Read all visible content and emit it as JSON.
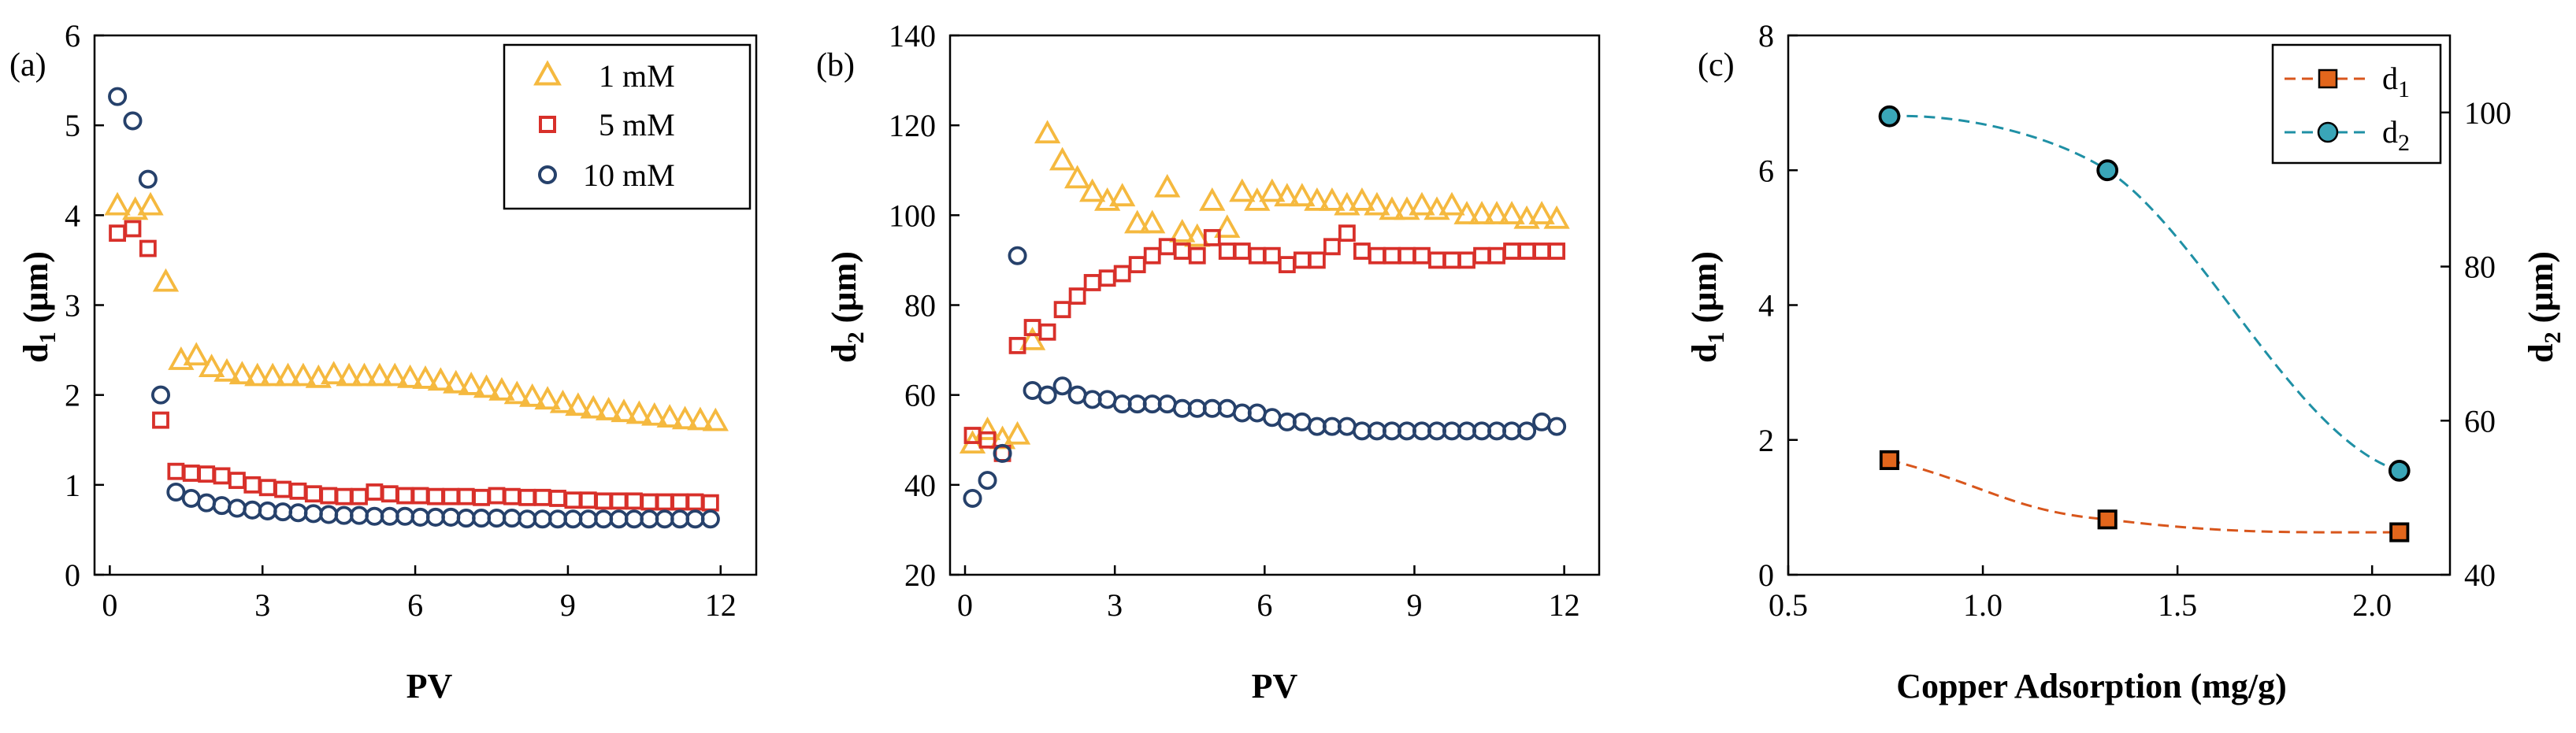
{
  "colors": {
    "yellow": "#F5B93F",
    "red": "#D8302A",
    "navy": "#26416B",
    "orange": "#D8561C",
    "teal": "#1F90A5",
    "teal_fill": "#3AA6B8",
    "orange_fill": "#E2661C"
  },
  "chart_data": [
    {
      "panel": "(a)",
      "type": "scatter",
      "xlabel": "PV",
      "ylabel": "d1 (µm)",
      "ylabel_main": "d",
      "ylabel_sub": "1",
      "ylabel_unit": " (µm)",
      "xlim": [
        -0.3,
        12.7
      ],
      "ylim": [
        0,
        6
      ],
      "xticks": [
        0,
        3,
        6,
        9,
        12
      ],
      "yticks": [
        0,
        1,
        2,
        3,
        4,
        5,
        6
      ],
      "legend": {
        "position": "top-right"
      },
      "series": [
        {
          "name": "1 mM",
          "marker": "triangle",
          "color": "yellow",
          "x": [
            0.15,
            0.5,
            0.8,
            1.1,
            1.4,
            1.7,
            2.0,
            2.3,
            2.6,
            2.9,
            3.2,
            3.5,
            3.8,
            4.1,
            4.4,
            4.7,
            5.0,
            5.3,
            5.6,
            5.9,
            6.2,
            6.5,
            6.8,
            7.1,
            7.4,
            7.7,
            8.0,
            8.3,
            8.6,
            8.9,
            9.2,
            9.5,
            9.8,
            10.1,
            10.4,
            10.7,
            11.0,
            11.3,
            11.6,
            11.9
          ],
          "y": [
            4.1,
            4.05,
            4.1,
            3.25,
            2.38,
            2.43,
            2.3,
            2.25,
            2.22,
            2.2,
            2.2,
            2.2,
            2.2,
            2.18,
            2.22,
            2.2,
            2.2,
            2.2,
            2.2,
            2.18,
            2.17,
            2.15,
            2.12,
            2.1,
            2.07,
            2.04,
            2.0,
            1.97,
            1.94,
            1.9,
            1.87,
            1.84,
            1.82,
            1.8,
            1.78,
            1.76,
            1.74,
            1.72,
            1.71,
            1.7
          ]
        },
        {
          "name": "5 mM",
          "marker": "square",
          "color": "red",
          "x": [
            0.15,
            0.45,
            0.75,
            1.0,
            1.3,
            1.6,
            1.9,
            2.2,
            2.5,
            2.8,
            3.1,
            3.4,
            3.7,
            4.0,
            4.3,
            4.6,
            4.9,
            5.2,
            5.5,
            5.8,
            6.1,
            6.4,
            6.7,
            7.0,
            7.3,
            7.6,
            7.9,
            8.2,
            8.5,
            8.8,
            9.1,
            9.4,
            9.7,
            10.0,
            10.3,
            10.6,
            10.9,
            11.2,
            11.5,
            11.8
          ],
          "y": [
            3.8,
            3.85,
            3.63,
            1.72,
            1.15,
            1.13,
            1.12,
            1.1,
            1.05,
            1.0,
            0.97,
            0.95,
            0.93,
            0.9,
            0.88,
            0.87,
            0.87,
            0.92,
            0.9,
            0.88,
            0.88,
            0.87,
            0.87,
            0.87,
            0.86,
            0.88,
            0.87,
            0.86,
            0.86,
            0.85,
            0.83,
            0.83,
            0.82,
            0.82,
            0.82,
            0.81,
            0.81,
            0.81,
            0.81,
            0.8
          ]
        },
        {
          "name": "10 mM",
          "marker": "circle",
          "color": "navy",
          "x": [
            0.15,
            0.45,
            0.75,
            1.0,
            1.3,
            1.6,
            1.9,
            2.2,
            2.5,
            2.8,
            3.1,
            3.4,
            3.7,
            4.0,
            4.3,
            4.6,
            4.9,
            5.2,
            5.5,
            5.8,
            6.1,
            6.4,
            6.7,
            7.0,
            7.3,
            7.6,
            7.9,
            8.2,
            8.5,
            8.8,
            9.1,
            9.4,
            9.7,
            10.0,
            10.3,
            10.6,
            10.9,
            11.2,
            11.5,
            11.8
          ],
          "y": [
            5.32,
            5.05,
            4.4,
            2.0,
            0.92,
            0.85,
            0.8,
            0.77,
            0.74,
            0.72,
            0.71,
            0.7,
            0.69,
            0.68,
            0.67,
            0.66,
            0.66,
            0.65,
            0.65,
            0.65,
            0.64,
            0.64,
            0.64,
            0.63,
            0.63,
            0.63,
            0.63,
            0.62,
            0.62,
            0.62,
            0.62,
            0.62,
            0.62,
            0.62,
            0.62,
            0.62,
            0.62,
            0.62,
            0.62,
            0.62
          ]
        }
      ]
    },
    {
      "panel": "(b)",
      "type": "scatter",
      "xlabel": "PV",
      "ylabel": "d2 (µm)",
      "ylabel_main": "d",
      "ylabel_sub": "2",
      "ylabel_unit": " (µm)",
      "xlim": [
        -0.3,
        12.7
      ],
      "ylim": [
        20,
        140
      ],
      "xticks": [
        0,
        3,
        6,
        9,
        12
      ],
      "yticks": [
        20,
        40,
        60,
        80,
        100,
        120,
        140
      ],
      "series": [
        {
          "name": "1 mM",
          "marker": "triangle",
          "color": "yellow",
          "x": [
            0.15,
            0.45,
            0.75,
            1.05,
            1.35,
            1.65,
            1.95,
            2.25,
            2.55,
            2.85,
            3.15,
            3.45,
            3.75,
            4.05,
            4.35,
            4.65,
            4.95,
            5.25,
            5.55,
            5.85,
            6.15,
            6.45,
            6.75,
            7.05,
            7.35,
            7.65,
            7.95,
            8.25,
            8.55,
            8.85,
            9.15,
            9.45,
            9.75,
            10.05,
            10.35,
            10.65,
            10.95,
            11.25,
            11.55,
            11.85
          ],
          "y": [
            49,
            52,
            50,
            51,
            72,
            118,
            112,
            108,
            105,
            103,
            104,
            98,
            98,
            106,
            96,
            95,
            103,
            97,
            105,
            103,
            105,
            104,
            104,
            103,
            103,
            102,
            103,
            102,
            101,
            101,
            102,
            101,
            102,
            100,
            100,
            100,
            100,
            99,
            100,
            99
          ]
        },
        {
          "name": "5 mM",
          "marker": "square",
          "color": "red",
          "x": [
            0.15,
            0.45,
            0.75,
            1.05,
            1.35,
            1.65,
            1.95,
            2.25,
            2.55,
            2.85,
            3.15,
            3.45,
            3.75,
            4.05,
            4.35,
            4.65,
            4.95,
            5.25,
            5.55,
            5.85,
            6.15,
            6.45,
            6.75,
            7.05,
            7.35,
            7.65,
            7.95,
            8.25,
            8.55,
            8.85,
            9.15,
            9.45,
            9.75,
            10.05,
            10.35,
            10.65,
            10.95,
            11.25,
            11.55,
            11.85
          ],
          "y": [
            51,
            50,
            47,
            71,
            75,
            74,
            79,
            82,
            85,
            86,
            87,
            89,
            91,
            93,
            92,
            91,
            95,
            92,
            92,
            91,
            91,
            89,
            90,
            90,
            93,
            96,
            92,
            91,
            91,
            91,
            91,
            90,
            90,
            90,
            91,
            91,
            92,
            92,
            92,
            92
          ]
        },
        {
          "name": "10 mM",
          "marker": "circle",
          "color": "navy",
          "x": [
            0.15,
            0.45,
            0.75,
            1.05,
            1.35,
            1.65,
            1.95,
            2.25,
            2.55,
            2.85,
            3.15,
            3.45,
            3.75,
            4.05,
            4.35,
            4.65,
            4.95,
            5.25,
            5.55,
            5.85,
            6.15,
            6.45,
            6.75,
            7.05,
            7.35,
            7.65,
            7.95,
            8.25,
            8.55,
            8.85,
            9.15,
            9.45,
            9.75,
            10.05,
            10.35,
            10.65,
            10.95,
            11.25,
            11.55,
            11.85
          ],
          "y": [
            37,
            41,
            47,
            91,
            61,
            60,
            62,
            60,
            59,
            59,
            58,
            58,
            58,
            58,
            57,
            57,
            57,
            57,
            56,
            56,
            55,
            54,
            54,
            53,
            53,
            53,
            52,
            52,
            52,
            52,
            52,
            52,
            52,
            52,
            52,
            52,
            52,
            52,
            54,
            53
          ]
        }
      ]
    },
    {
      "panel": "(c)",
      "type": "line",
      "xlabel": "Copper Adsorption (mg/g)",
      "ylabel": "d1 (µm)",
      "ylabel_main": "d",
      "ylabel_sub": "1",
      "ylabel_unit": " (µm)",
      "y2label": "d2 (µm)",
      "y2label_main": "d",
      "y2label_sub": "2",
      "y2label_unit": " (µm)",
      "xlim": [
        0.5,
        2.2
      ],
      "ylim": [
        0,
        8
      ],
      "y2lim": [
        40,
        110
      ],
      "xticks": [
        "0.5",
        "1.0",
        "1.5",
        "2.0"
      ],
      "yticks": [
        0,
        2,
        4,
        6,
        8
      ],
      "y2ticks": [
        40,
        60,
        80,
        100
      ],
      "legend": {
        "position": "top-right"
      },
      "series": [
        {
          "name": "d1",
          "legend_main": "d",
          "legend_sub": "1",
          "axis": "left",
          "marker": "square",
          "color": "orange",
          "x": [
            0.76,
            1.32,
            2.07
          ],
          "y": [
            1.7,
            0.82,
            0.63
          ]
        },
        {
          "name": "d2",
          "legend_main": "d",
          "legend_sub": "2",
          "axis": "right",
          "marker": "circle",
          "color": "teal",
          "x": [
            0.76,
            1.32,
            2.07
          ],
          "y": [
            99.5,
            92.5,
            53.5
          ]
        }
      ]
    }
  ]
}
